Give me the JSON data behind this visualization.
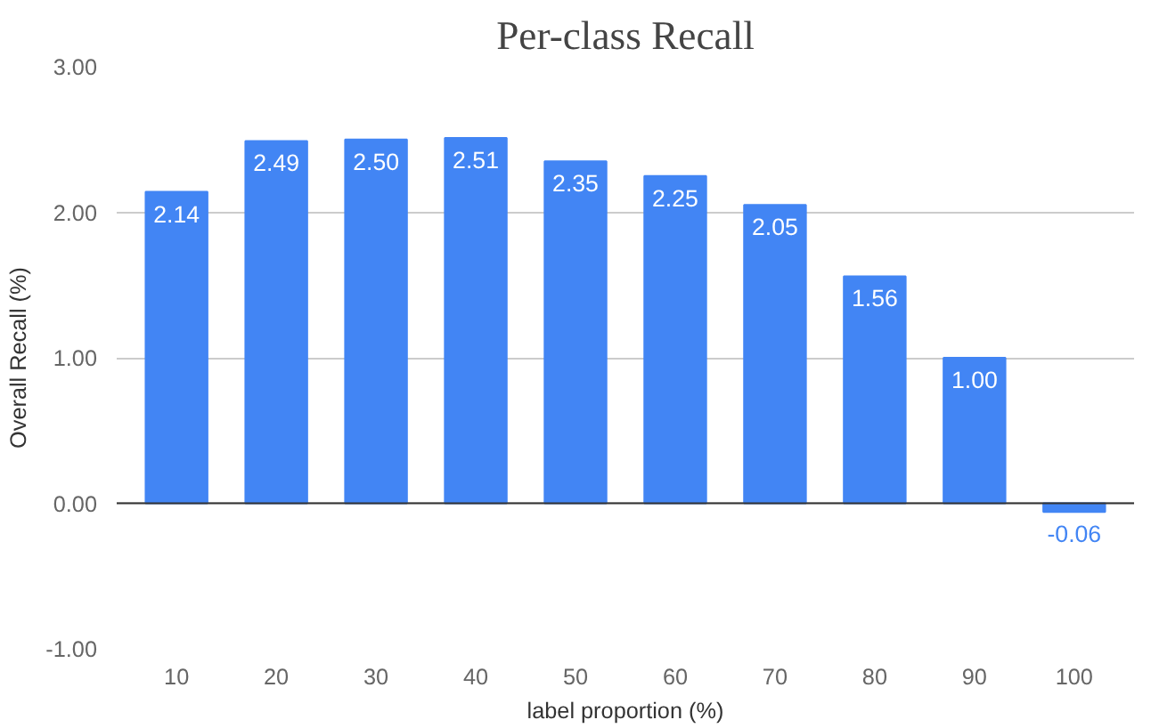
{
  "chart_data": {
    "type": "bar",
    "title": "Per-class Recall",
    "xlabel": "label proportion (%)",
    "ylabel": "Overall Recall (%)",
    "categories": [
      "10",
      "20",
      "30",
      "40",
      "50",
      "60",
      "70",
      "80",
      "90",
      "100"
    ],
    "values": [
      2.14,
      2.49,
      2.5,
      2.51,
      2.35,
      2.25,
      2.05,
      1.56,
      1.0,
      -0.06
    ],
    "value_labels": [
      "2.14",
      "2.49",
      "2.50",
      "2.51",
      "2.35",
      "2.25",
      "2.05",
      "1.56",
      "1.00",
      "-0.06"
    ],
    "color": "#4285f4",
    "ylim": [
      -1,
      3
    ],
    "yticks": [
      {
        "value": -1,
        "label": "-1.00"
      },
      {
        "value": 0,
        "label": "0.00"
      },
      {
        "value": 1,
        "label": "1.00"
      },
      {
        "value": 2,
        "label": "2.00"
      },
      {
        "value": 3,
        "label": "3.00"
      }
    ],
    "grid": "y"
  }
}
